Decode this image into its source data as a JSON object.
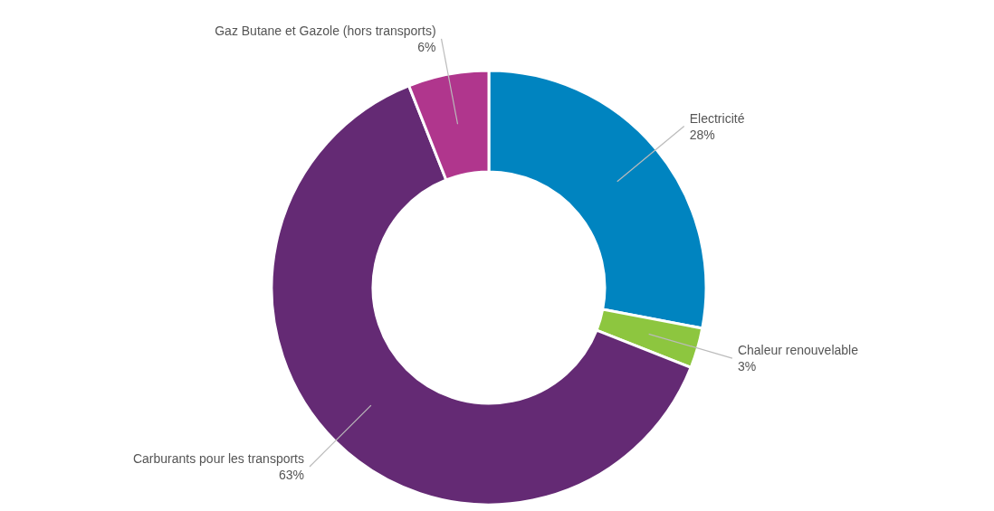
{
  "chart_data": {
    "type": "donut",
    "categories": [
      "Electricité",
      "Chaleur renouvelable",
      "Carburants pour les transports",
      "Gaz Butane et Gazole (hors transports)"
    ],
    "values": [
      28,
      3,
      63,
      6
    ],
    "value_labels": [
      "28%",
      "3%",
      "63%",
      "6%"
    ],
    "colors": [
      "#0084c0",
      "#8dc63f",
      "#642a74",
      "#b0368d"
    ]
  }
}
